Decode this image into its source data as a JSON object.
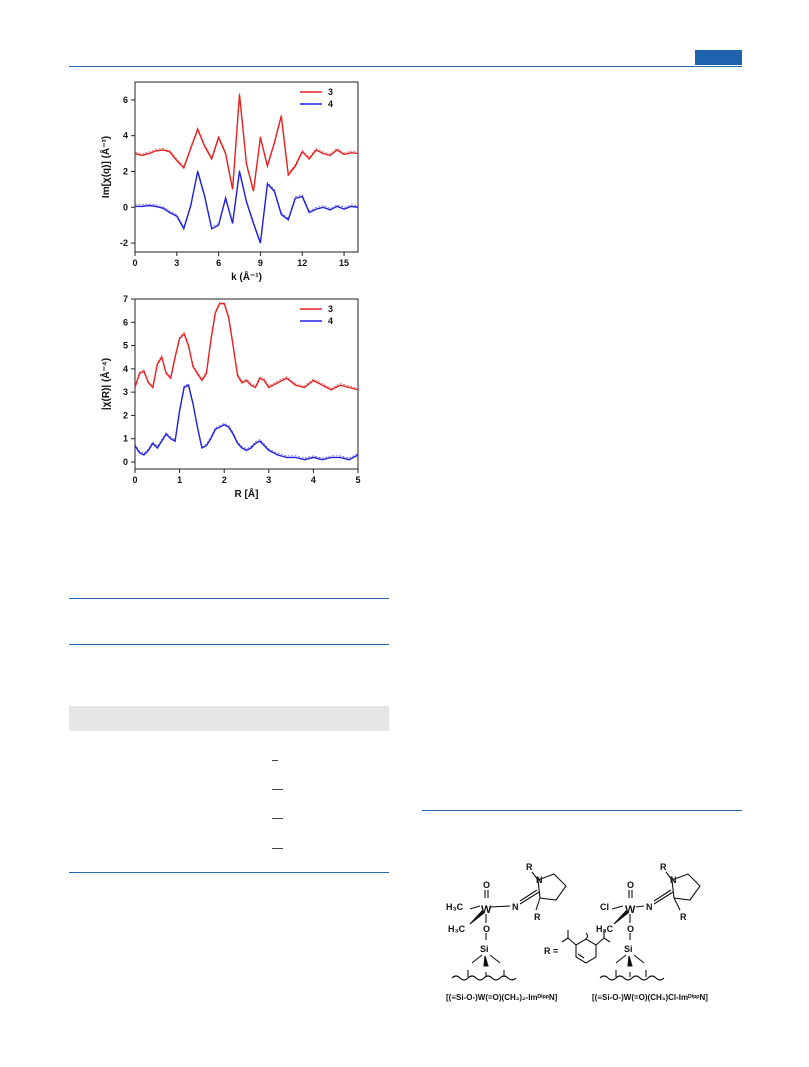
{
  "charts": [
    {
      "type": "line",
      "xlabel": "k (Å⁻¹)",
      "ylabel": "Im[χ(q)] (Å⁻³)",
      "xlim": [
        0,
        16
      ],
      "ylim": [
        -2.5,
        7
      ],
      "x_ticks": [
        "0",
        "3",
        "6",
        "9",
        "12",
        "15"
      ],
      "y_ticks": [
        "-2",
        "0",
        "2",
        "4",
        "6"
      ],
      "legend_position": "top-right",
      "series": [
        {
          "name": "3",
          "color": "#e82020",
          "x": [
            0,
            0.5,
            1,
            1.5,
            2,
            2.5,
            3,
            3.5,
            4,
            4.5,
            5,
            5.5,
            6,
            6.5,
            7,
            7.5,
            8,
            8.5,
            9,
            9.5,
            10,
            10.5,
            11,
            11.5,
            12,
            12.5,
            13,
            13.5,
            14,
            14.5,
            15,
            15.5,
            16
          ],
          "y": [
            3.0,
            2.9,
            3.0,
            3.15,
            3.2,
            3.1,
            2.6,
            2.2,
            3.3,
            4.35,
            3.4,
            2.7,
            3.9,
            3.0,
            1.0,
            6.3,
            2.4,
            0.9,
            3.9,
            2.3,
            3.6,
            5.1,
            1.8,
            2.3,
            3.1,
            2.7,
            3.2,
            3.0,
            2.9,
            3.2,
            2.95,
            3.05,
            3.0
          ]
        },
        {
          "name": "4",
          "color": "#2020e0",
          "x": [
            0,
            0.5,
            1,
            1.5,
            2,
            2.5,
            3,
            3.5,
            4,
            4.5,
            5,
            5.5,
            6,
            6.5,
            7,
            7.5,
            8,
            8.5,
            9,
            9.5,
            10,
            10.5,
            11,
            11.5,
            12,
            12.5,
            13,
            13.5,
            14,
            14.5,
            15,
            15.5,
            16
          ],
          "y": [
            0.05,
            0.05,
            0.1,
            0.05,
            -0.05,
            -0.3,
            -0.5,
            -1.2,
            0.1,
            2.0,
            0.6,
            -1.2,
            -1.0,
            0.5,
            -0.9,
            2.0,
            0.3,
            -0.9,
            -2.0,
            1.3,
            0.9,
            -0.4,
            -0.7,
            0.5,
            0.6,
            -0.3,
            -0.1,
            0.0,
            -0.15,
            0.05,
            -0.1,
            0.05,
            0.0
          ]
        }
      ]
    },
    {
      "type": "line",
      "xlabel": "R [Å]",
      "ylabel": "|χ(R)| (Å⁻⁴)",
      "xlim": [
        0,
        5
      ],
      "ylim": [
        -0.3,
        7
      ],
      "x_ticks": [
        "0",
        "1",
        "2",
        "3",
        "4",
        "5"
      ],
      "y_ticks": [
        "0",
        "1",
        "2",
        "3",
        "4",
        "5",
        "6",
        "7"
      ],
      "legend_position": "top-right",
      "series": [
        {
          "name": "3",
          "color": "#e82020",
          "x": [
            0,
            0.1,
            0.2,
            0.3,
            0.4,
            0.5,
            0.6,
            0.7,
            0.8,
            0.9,
            1.0,
            1.1,
            1.2,
            1.3,
            1.4,
            1.5,
            1.6,
            1.7,
            1.8,
            1.9,
            2.0,
            2.1,
            2.2,
            2.3,
            2.4,
            2.5,
            2.6,
            2.7,
            2.8,
            2.9,
            3.0,
            3.2,
            3.4,
            3.6,
            3.8,
            4.0,
            4.2,
            4.4,
            4.6,
            4.8,
            5.0
          ],
          "y": [
            3.2,
            3.8,
            3.9,
            3.4,
            3.2,
            4.2,
            4.5,
            3.8,
            3.6,
            4.5,
            5.3,
            5.5,
            5.0,
            4.1,
            3.8,
            3.5,
            3.8,
            5.2,
            6.4,
            6.8,
            6.8,
            6.2,
            5.0,
            3.7,
            3.4,
            3.5,
            3.3,
            3.2,
            3.6,
            3.5,
            3.2,
            3.4,
            3.6,
            3.3,
            3.2,
            3.5,
            3.3,
            3.1,
            3.3,
            3.2,
            3.1
          ]
        },
        {
          "name": "4",
          "color": "#2020e0",
          "x": [
            0,
            0.1,
            0.2,
            0.3,
            0.4,
            0.5,
            0.6,
            0.7,
            0.8,
            0.9,
            1.0,
            1.1,
            1.2,
            1.3,
            1.4,
            1.5,
            1.6,
            1.7,
            1.8,
            1.9,
            2.0,
            2.1,
            2.2,
            2.3,
            2.4,
            2.5,
            2.6,
            2.7,
            2.8,
            2.9,
            3.0,
            3.2,
            3.4,
            3.6,
            3.8,
            4.0,
            4.2,
            4.4,
            4.6,
            4.8,
            5.0
          ],
          "y": [
            0.7,
            0.4,
            0.3,
            0.5,
            0.8,
            0.6,
            0.9,
            1.2,
            1.0,
            0.9,
            2.2,
            3.2,
            3.3,
            2.5,
            1.5,
            0.6,
            0.7,
            1.0,
            1.4,
            1.5,
            1.6,
            1.5,
            1.2,
            0.8,
            0.6,
            0.5,
            0.6,
            0.8,
            0.9,
            0.7,
            0.5,
            0.3,
            0.2,
            0.2,
            0.1,
            0.2,
            0.1,
            0.2,
            0.2,
            0.1,
            0.3
          ]
        }
      ]
    }
  ],
  "scheme": {
    "r_label_top_left": "R",
    "n_label_left": "N",
    "n_label_mid_left": "N",
    "r_label_bottom_left": "R",
    "r_label_top_right": "R",
    "n_label_right": "N",
    "n_label_mid_right": "N",
    "r_label_bottom_right": "R",
    "w_label_left": "W",
    "w_label_right": "W",
    "o_top_left": "O",
    "o_top_right": "O",
    "o_link_left": "O",
    "o_link_right": "O",
    "si_left": "Si",
    "si_right": "Si",
    "ch3_a": "H₃C",
    "ch3_b": "H₃C",
    "ch3_c": "H₃C",
    "cl": "Cl",
    "r_equals": "R =",
    "caption_left": "[(≡Si-O-)W(=O)(CH₂)₂-ImᴰⁱᵖᵖN]",
    "caption_right": "[(≡Si-O-)W(=O)(CH₃)Cl-ImᴰⁱᵖᵖN]"
  }
}
